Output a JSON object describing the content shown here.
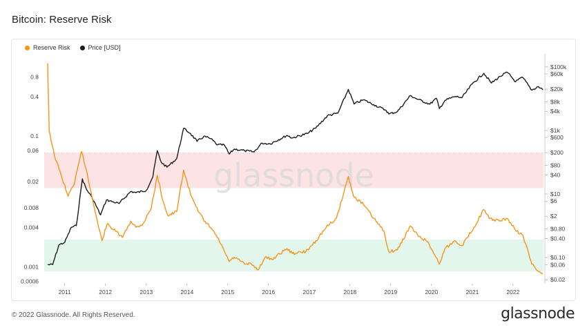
{
  "header": {
    "title": "Bitcoin: Reserve Risk"
  },
  "footer": {
    "copyright": "© 2022 Glassnode. All Rights Reserved.",
    "brand": "glassnode"
  },
  "watermark": "glassnode",
  "chart_data": {
    "type": "line",
    "title": "Bitcoin: Reserve Risk",
    "x_axis": {
      "type": "date",
      "range": [
        "2010-07-01",
        "2022-10-01"
      ],
      "ticks": [
        "2011",
        "2012",
        "2013",
        "2014",
        "2015",
        "2016",
        "2017",
        "2018",
        "2019",
        "2020",
        "2021",
        "2022"
      ]
    },
    "y_left": {
      "scale": "log",
      "range": [
        0.00055,
        1.6
      ],
      "ticks": [
        0.8,
        0.4,
        0.1,
        0.06,
        0.02,
        0.008,
        0.004,
        0.001,
        0.0006
      ],
      "tick_labels": [
        "0.8",
        "0.4",
        "0.1",
        "0.06",
        "0.02",
        "0.008",
        "0.004",
        "0.001",
        "0.0006"
      ]
    },
    "y_right": {
      "scale": "log",
      "range": [
        0.015,
        200000
      ],
      "ticks": [
        100000,
        60000,
        20000,
        8000,
        4000,
        1000,
        600,
        200,
        80,
        40,
        10,
        6,
        2,
        0.8,
        0.4,
        0.1,
        0.06,
        0.02
      ],
      "tick_labels": [
        "$100k",
        "$60k",
        "$20k",
        "$8k",
        "$4k",
        "$1k",
        "$600",
        "$200",
        "$80",
        "$40",
        "$10",
        "$6",
        "$2",
        "$0.80",
        "$0.40",
        "$0.10",
        "$0.06",
        "$0.02"
      ]
    },
    "bands": [
      {
        "name": "high",
        "from": 0.016,
        "to": 0.055,
        "color": "#fde4e4"
      },
      {
        "name": "low",
        "from": 0.00085,
        "to": 0.0026,
        "color": "#e3f6ec"
      }
    ],
    "legend_placement": "top-left",
    "grid": true,
    "series": [
      {
        "name": "Reserve Risk",
        "axis": "left",
        "color": "#f7931a",
        "points": [
          [
            "2010-08-01",
            1.3
          ],
          [
            "2010-08-15",
            0.12
          ],
          [
            "2010-10-01",
            0.05
          ],
          [
            "2010-12-01",
            0.025
          ],
          [
            "2011-02-01",
            0.012
          ],
          [
            "2011-04-01",
            0.02
          ],
          [
            "2011-06-01",
            0.058
          ],
          [
            "2011-07-15",
            0.03
          ],
          [
            "2011-09-01",
            0.012
          ],
          [
            "2011-11-01",
            0.004
          ],
          [
            "2011-12-01",
            0.0025
          ],
          [
            "2012-01-15",
            0.0045
          ],
          [
            "2012-04-01",
            0.0035
          ],
          [
            "2012-06-01",
            0.0028
          ],
          [
            "2012-08-15",
            0.005
          ],
          [
            "2012-10-01",
            0.004
          ],
          [
            "2012-12-01",
            0.0045
          ],
          [
            "2013-02-15",
            0.008
          ],
          [
            "2013-04-10",
            0.025
          ],
          [
            "2013-06-01",
            0.01
          ],
          [
            "2013-07-15",
            0.006
          ],
          [
            "2013-10-01",
            0.007
          ],
          [
            "2013-12-01",
            0.03
          ],
          [
            "2014-02-01",
            0.013
          ],
          [
            "2014-04-01",
            0.008
          ],
          [
            "2014-06-01",
            0.005
          ],
          [
            "2014-08-01",
            0.004
          ],
          [
            "2014-10-01",
            0.0028
          ],
          [
            "2015-01-15",
            0.0012
          ],
          [
            "2015-03-01",
            0.0014
          ],
          [
            "2015-06-01",
            0.0011
          ],
          [
            "2015-08-01",
            0.0011
          ],
          [
            "2015-10-01",
            0.0009
          ],
          [
            "2015-12-01",
            0.0014
          ],
          [
            "2016-02-01",
            0.0013
          ],
          [
            "2016-06-15",
            0.0019
          ],
          [
            "2016-08-01",
            0.0016
          ],
          [
            "2016-12-01",
            0.0017
          ],
          [
            "2017-03-01",
            0.0025
          ],
          [
            "2017-06-01",
            0.004
          ],
          [
            "2017-09-01",
            0.0055
          ],
          [
            "2017-12-17",
            0.024
          ],
          [
            "2018-02-01",
            0.012
          ],
          [
            "2018-05-01",
            0.009
          ],
          [
            "2018-08-01",
            0.0055
          ],
          [
            "2018-11-01",
            0.0035
          ],
          [
            "2018-12-15",
            0.0017
          ],
          [
            "2019-03-01",
            0.0018
          ],
          [
            "2019-06-26",
            0.0042
          ],
          [
            "2019-09-01",
            0.003
          ],
          [
            "2019-12-01",
            0.0024
          ],
          [
            "2020-03-12",
            0.0011
          ],
          [
            "2020-05-01",
            0.0019
          ],
          [
            "2020-08-01",
            0.0025
          ],
          [
            "2020-10-01",
            0.0021
          ],
          [
            "2021-01-15",
            0.004
          ],
          [
            "2021-04-13",
            0.0075
          ],
          [
            "2021-06-01",
            0.0055
          ],
          [
            "2021-09-01",
            0.005
          ],
          [
            "2021-11-10",
            0.0055
          ],
          [
            "2022-02-01",
            0.0035
          ],
          [
            "2022-04-01",
            0.003
          ],
          [
            "2022-06-18",
            0.0011
          ],
          [
            "2022-08-15",
            0.00085
          ],
          [
            "2022-09-25",
            0.0008
          ]
        ]
      },
      {
        "name": "Price [USD]",
        "axis": "right",
        "color": "#1a1a1a",
        "points": [
          [
            "2010-08-01",
            0.06
          ],
          [
            "2010-09-15",
            0.06
          ],
          [
            "2010-11-10",
            0.25
          ],
          [
            "2011-01-01",
            0.3
          ],
          [
            "2011-03-01",
            0.9
          ],
          [
            "2011-04-15",
            1
          ],
          [
            "2011-06-08",
            30
          ],
          [
            "2011-07-15",
            14
          ],
          [
            "2011-09-01",
            8
          ],
          [
            "2011-11-18",
            2.2
          ],
          [
            "2012-01-10",
            6.5
          ],
          [
            "2012-05-01",
            5
          ],
          [
            "2012-08-15",
            12
          ],
          [
            "2012-10-01",
            11
          ],
          [
            "2013-01-01",
            13
          ],
          [
            "2013-03-01",
            35
          ],
          [
            "2013-04-09",
            230
          ],
          [
            "2013-05-15",
            100
          ],
          [
            "2013-07-05",
            70
          ],
          [
            "2013-10-01",
            130
          ],
          [
            "2013-12-01",
            1150
          ],
          [
            "2014-02-01",
            800
          ],
          [
            "2014-04-01",
            450
          ],
          [
            "2014-06-01",
            650
          ],
          [
            "2014-08-01",
            550
          ],
          [
            "2014-10-01",
            350
          ],
          [
            "2014-12-01",
            350
          ],
          [
            "2015-01-14",
            180
          ],
          [
            "2015-03-01",
            260
          ],
          [
            "2015-06-01",
            230
          ],
          [
            "2015-08-25",
            210
          ],
          [
            "2015-11-04",
            400
          ],
          [
            "2016-01-15",
            380
          ],
          [
            "2016-06-17",
            700
          ],
          [
            "2016-08-01",
            580
          ],
          [
            "2016-12-15",
            800
          ],
          [
            "2017-03-01",
            1200
          ],
          [
            "2017-06-12",
            2900
          ],
          [
            "2017-09-15",
            3500
          ],
          [
            "2017-12-17",
            19500
          ],
          [
            "2018-02-06",
            6800
          ],
          [
            "2018-05-01",
            9200
          ],
          [
            "2018-08-01",
            6500
          ],
          [
            "2018-11-20",
            4300
          ],
          [
            "2018-12-15",
            3300
          ],
          [
            "2019-03-01",
            3900
          ],
          [
            "2019-06-26",
            12500
          ],
          [
            "2019-09-01",
            9500
          ],
          [
            "2019-12-18",
            6700
          ],
          [
            "2020-02-14",
            10300
          ],
          [
            "2020-03-12",
            4900
          ],
          [
            "2020-05-01",
            8800
          ],
          [
            "2020-08-01",
            11700
          ],
          [
            "2020-10-01",
            10700
          ],
          [
            "2020-12-31",
            29000
          ],
          [
            "2021-04-14",
            63000
          ],
          [
            "2021-06-22",
            31000
          ],
          [
            "2021-09-07",
            50000
          ],
          [
            "2021-11-10",
            67500
          ],
          [
            "2022-01-24",
            34000
          ],
          [
            "2022-03-28",
            47000
          ],
          [
            "2022-06-18",
            18500
          ],
          [
            "2022-08-15",
            24000
          ],
          [
            "2022-09-25",
            19000
          ]
        ]
      }
    ]
  }
}
